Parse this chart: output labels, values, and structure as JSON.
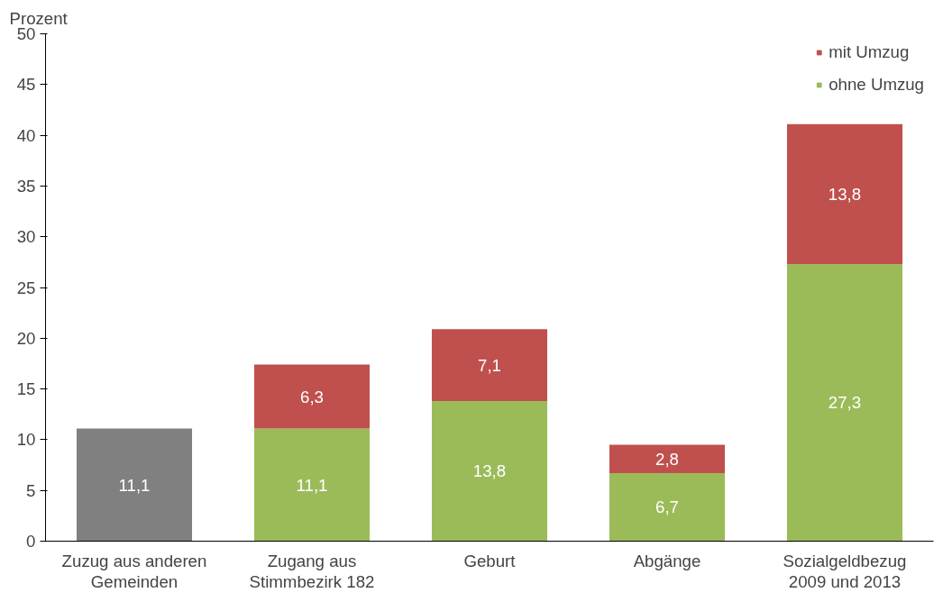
{
  "chart_data": {
    "type": "bar",
    "stacked": true,
    "ylabel": "Prozent",
    "categories": [
      "Zuzug aus anderen\nGemeinden",
      "Zugang aus\nStimmbezirk 182",
      "Geburt",
      "Abgänge",
      "Sozialgeldbezug\n2009 und 2013"
    ],
    "series": [
      {
        "name": "ohne Umzug",
        "color": "#9bbb59",
        "colors": [
          "#808080",
          "#9bbb59",
          "#9bbb59",
          "#9bbb59",
          "#9bbb59"
        ],
        "values": [
          11.1,
          11.1,
          13.8,
          6.7,
          27.3
        ],
        "value_labels": [
          "11,1",
          "11,1",
          "13,8",
          "6,7",
          "27,3"
        ]
      },
      {
        "name": "mit Umzug",
        "color": "#c0504d",
        "values": [
          null,
          6.3,
          7.1,
          2.8,
          13.8
        ],
        "value_labels": [
          null,
          "6,3",
          "7,1",
          "2,8",
          "13,8"
        ]
      }
    ],
    "ylim": [
      0,
      50
    ],
    "yticks": [
      0,
      5,
      10,
      15,
      20,
      25,
      30,
      35,
      40,
      45,
      50
    ],
    "legend": "top right",
    "grid": false
  }
}
